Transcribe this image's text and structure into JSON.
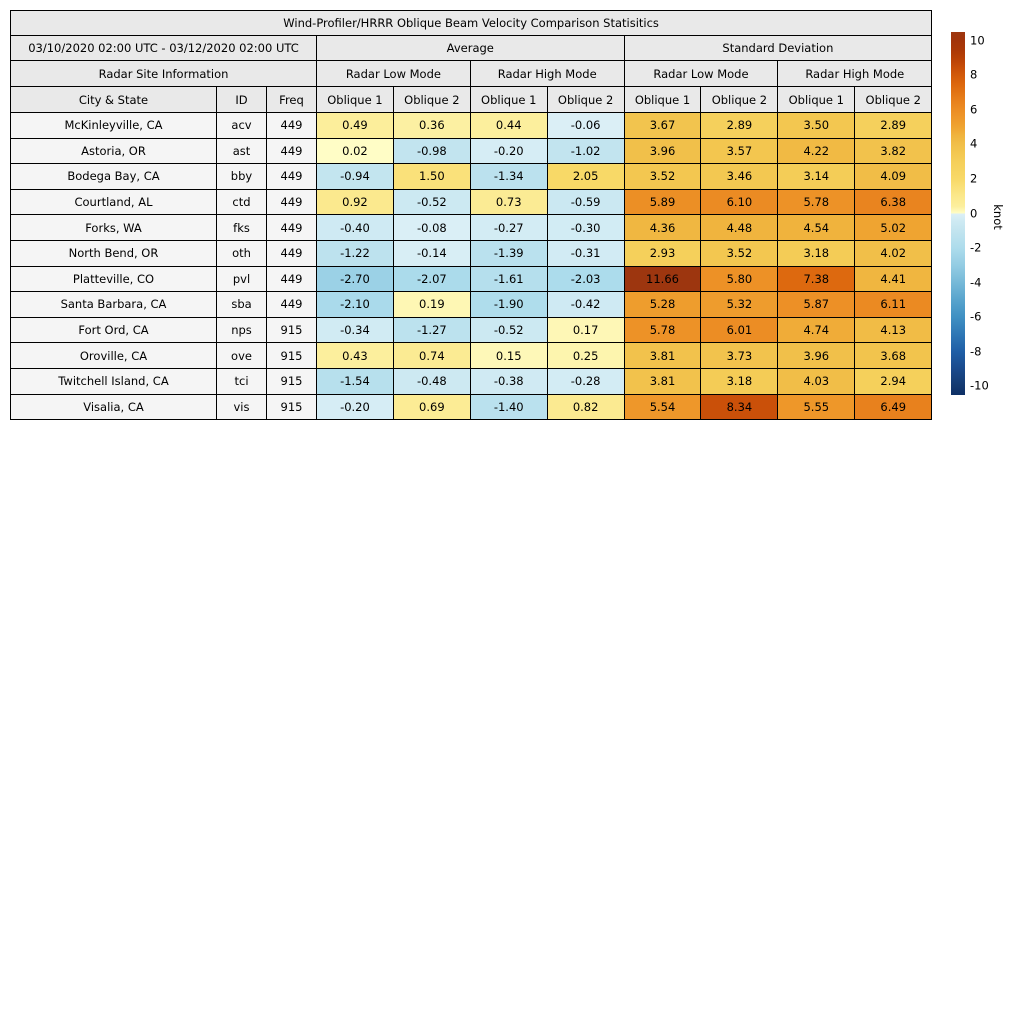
{
  "chart_data": {
    "type": "table",
    "title": "Wind-Profiler/HRRR Oblique Beam Velocity Comparison Statisitics",
    "header": {
      "date_range": "03/10/2020 02:00 UTC - 03/12/2020 02:00 UTC",
      "groups": [
        "Average",
        "Standard Deviation"
      ],
      "site_info": "Radar Site Information",
      "modes": [
        "Radar Low Mode",
        "Radar High Mode",
        "Radar Low Mode",
        "Radar High Mode"
      ],
      "site_columns": [
        "City & State",
        "ID",
        "Freq"
      ],
      "oblique_columns": [
        "Oblique 1",
        "Oblique 2",
        "Oblique 1",
        "Oblique 2",
        "Oblique 1",
        "Oblique 2",
        "Oblique 1",
        "Oblique 2"
      ]
    },
    "rows": [
      {
        "city": "McKinleyville, CA",
        "id": "acv",
        "freq": "449",
        "values": [
          0.49,
          0.36,
          0.44,
          -0.06,
          3.67,
          2.89,
          3.5,
          2.89
        ]
      },
      {
        "city": "Astoria, OR",
        "id": "ast",
        "freq": "449",
        "values": [
          0.02,
          -0.98,
          -0.2,
          -1.02,
          3.96,
          3.57,
          4.22,
          3.82
        ]
      },
      {
        "city": "Bodega Bay, CA",
        "id": "bby",
        "freq": "449",
        "values": [
          -0.94,
          1.5,
          -1.34,
          2.05,
          3.52,
          3.46,
          3.14,
          4.09
        ]
      },
      {
        "city": "Courtland, AL",
        "id": "ctd",
        "freq": "449",
        "values": [
          0.92,
          -0.52,
          0.73,
          -0.59,
          5.89,
          6.1,
          5.78,
          6.38
        ]
      },
      {
        "city": "Forks, WA",
        "id": "fks",
        "freq": "449",
        "values": [
          -0.4,
          -0.08,
          -0.27,
          -0.3,
          4.36,
          4.48,
          4.54,
          5.02
        ]
      },
      {
        "city": "North Bend, OR",
        "id": "oth",
        "freq": "449",
        "values": [
          -1.22,
          -0.14,
          -1.39,
          -0.31,
          2.93,
          3.52,
          3.18,
          4.02
        ]
      },
      {
        "city": "Platteville, CO",
        "id": "pvl",
        "freq": "449",
        "values": [
          -2.7,
          -2.07,
          -1.61,
          -2.03,
          11.66,
          5.8,
          7.38,
          4.41
        ]
      },
      {
        "city": "Santa Barbara, CA",
        "id": "sba",
        "freq": "449",
        "values": [
          -2.1,
          0.19,
          -1.9,
          -0.42,
          5.28,
          5.32,
          5.87,
          6.11
        ]
      },
      {
        "city": "Fort Ord, CA",
        "id": "nps",
        "freq": "915",
        "values": [
          -0.34,
          -1.27,
          -0.52,
          0.17,
          5.78,
          6.01,
          4.74,
          4.13
        ]
      },
      {
        "city": "Oroville, CA",
        "id": "ove",
        "freq": "915",
        "values": [
          0.43,
          0.74,
          0.15,
          0.25,
          3.81,
          3.73,
          3.96,
          3.68
        ]
      },
      {
        "city": "Twitchell Island, CA",
        "id": "tci",
        "freq": "915",
        "values": [
          -1.54,
          -0.48,
          -0.38,
          -0.28,
          3.81,
          3.18,
          4.03,
          2.94
        ]
      },
      {
        "city": "Visalia, CA",
        "id": "vis",
        "freq": "915",
        "values": [
          -0.2,
          0.69,
          -1.4,
          0.82,
          5.54,
          8.34,
          5.55,
          6.49
        ]
      }
    ],
    "colorbar": {
      "label": "knot",
      "ticks": [
        10,
        8,
        6,
        4,
        2,
        0,
        -2,
        -4,
        -6,
        -8,
        -10
      ],
      "vmin": -10.5,
      "vmax": 10.5
    },
    "colorscale": [
      [
        -10.5,
        "#0d2f66"
      ],
      [
        -10,
        "#14396f"
      ],
      [
        -9,
        "#1a4a8c"
      ],
      [
        -8,
        "#1f5ea6"
      ],
      [
        -7,
        "#2e77b5"
      ],
      [
        -6,
        "#3f90c3"
      ],
      [
        -5,
        "#58a4cd"
      ],
      [
        -4,
        "#76b9d8"
      ],
      [
        -3,
        "#93cce3"
      ],
      [
        -2,
        "#addcec"
      ],
      [
        -1,
        "#c2e4ef"
      ],
      [
        -0.4,
        "#cfeaf3"
      ],
      [
        -0.02,
        "#dcf0f6"
      ],
      [
        0.02,
        "#fffdc6"
      ],
      [
        0.4,
        "#fcef9e"
      ],
      [
        1,
        "#fbe88b"
      ],
      [
        2,
        "#f8d968"
      ],
      [
        3,
        "#f5cf5a"
      ],
      [
        3.5,
        "#f3c750"
      ],
      [
        4,
        "#f1bf49"
      ],
      [
        4.5,
        "#f0b43e"
      ],
      [
        5,
        "#efa431"
      ],
      [
        5.5,
        "#ee982a"
      ],
      [
        6,
        "#ec8d24"
      ],
      [
        6.5,
        "#e8811d"
      ],
      [
        7,
        "#e27414"
      ],
      [
        7.5,
        "#dc660d"
      ],
      [
        8,
        "#d25a0a"
      ],
      [
        8.5,
        "#c64c08"
      ],
      [
        9,
        "#b74006"
      ],
      [
        9.5,
        "#aa3807"
      ],
      [
        10,
        "#a2340a"
      ],
      [
        10.5,
        "#9d360f"
      ]
    ],
    "table_colors": {
      "header_bg": "#e9e9e9",
      "site_bg": "#f5f5f5",
      "border": "#000000"
    }
  }
}
